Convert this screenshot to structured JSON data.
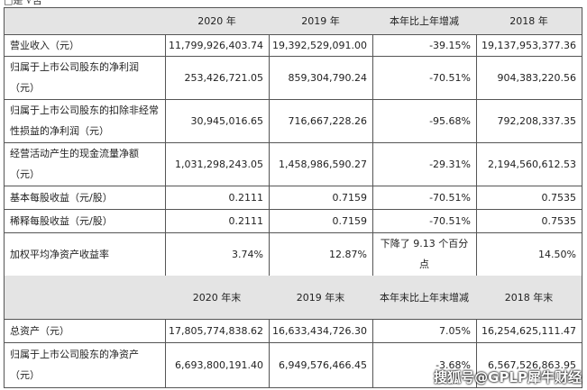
{
  "top_note": "□是 √否",
  "table": {
    "sections": [
      {
        "header": [
          "",
          "2020 年",
          "2019 年",
          "本年比上年增减",
          "2018 年"
        ],
        "rows": [
          [
            "营业收入（元）",
            "11,799,926,403.74",
            "19,392,529,091.00",
            "-39.15%",
            "19,137,953,377.36"
          ],
          [
            "归属于上市公司股东的净利润（元）",
            "253,426,721.05",
            "859,304,790.24",
            "-70.51%",
            "904,383,220.56"
          ],
          [
            "归属于上市公司股东的扣除非经常性损益的净利润（元）",
            "30,945,016.65",
            "716,667,228.26",
            "-95.68%",
            "792,208,337.35"
          ],
          [
            "经营活动产生的现金流量净额（元）",
            "1,031,298,243.05",
            "1,458,986,590.27",
            "-29.31%",
            "2,194,560,612.53"
          ],
          [
            "基本每股收益（元/股）",
            "0.2111",
            "0.7159",
            "-70.51%",
            "0.7535"
          ],
          [
            "稀释每股收益（元/股）",
            "0.2111",
            "0.7159",
            "-70.51%",
            "0.7535"
          ],
          [
            "加权平均净资产收益率",
            "3.74%",
            "12.87%",
            "下降了 9.13 个百分点",
            "14.50%"
          ]
        ]
      },
      {
        "header": [
          "",
          "2020 年末",
          "2019 年末",
          "本年末比上年末增减",
          "2018 年末"
        ],
        "rows": [
          [
            "总资产（元）",
            "17,805,774,838.62",
            "16,633,434,726.30",
            "7.05%",
            "16,254,625,111.47"
          ],
          [
            "归属于上市公司股东的净资产（元）",
            "6,693,800,191.40",
            "6,949,576,466.45",
            "-3.68%",
            "6,567,526,863.95"
          ]
        ]
      }
    ]
  },
  "watermark": "搜狐号@GPLP犀牛财经"
}
